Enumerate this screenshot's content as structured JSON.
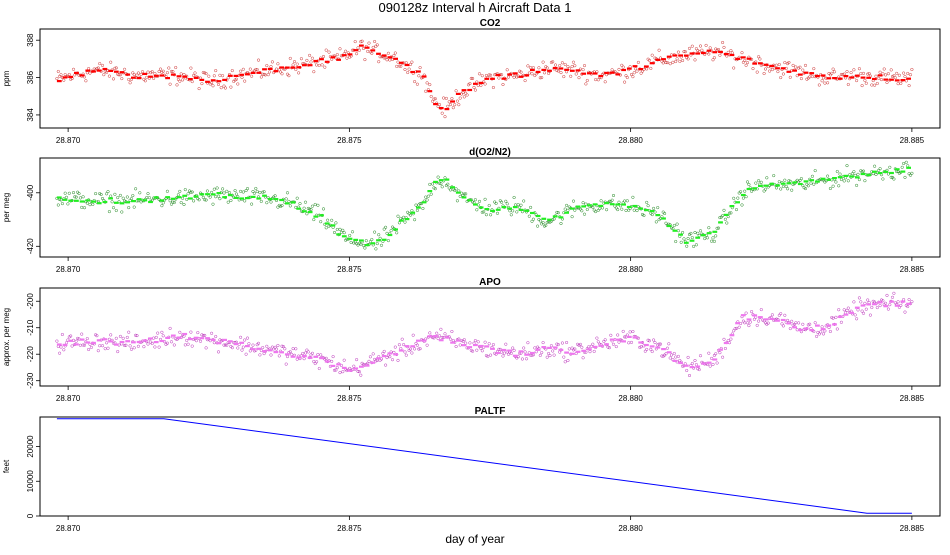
{
  "chart_data": {
    "title": "090128z   Interval h Aircraft Data 1",
    "xlabel": "day of year",
    "xlim": [
      28.8695,
      28.8855
    ],
    "x_ticks": [
      "28.870",
      "28.875",
      "28.880",
      "28.885"
    ],
    "panels": [
      {
        "id": "co2",
        "type": "scatter",
        "title": "CO2",
        "ylabel": "ppm",
        "ylim": [
          383.3,
          388.6
        ],
        "y_ticks": [
          "384",
          "386",
          "388"
        ],
        "point_color": "#cc3333",
        "line_color": "#ff0000",
        "anchors": [
          [
            28.8698,
            385.9
          ],
          [
            28.8705,
            386.4
          ],
          [
            28.8712,
            386.1
          ],
          [
            28.872,
            386.1
          ],
          [
            28.8725,
            385.8
          ],
          [
            28.873,
            386.1
          ],
          [
            28.874,
            386.6
          ],
          [
            28.8748,
            387.0
          ],
          [
            28.8752,
            387.6
          ],
          [
            28.8758,
            387.1
          ],
          [
            28.876,
            386.6
          ],
          [
            28.8763,
            386.2
          ],
          [
            28.8765,
            384.8
          ],
          [
            28.8767,
            384.3
          ],
          [
            28.877,
            385.2
          ],
          [
            28.8775,
            386.0
          ],
          [
            28.878,
            386.1
          ],
          [
            28.8785,
            386.5
          ],
          [
            28.879,
            386.4
          ],
          [
            28.8795,
            386.1
          ],
          [
            28.88,
            386.4
          ],
          [
            28.8805,
            386.9
          ],
          [
            28.881,
            387.2
          ],
          [
            28.8815,
            387.4
          ],
          [
            28.882,
            387.0
          ],
          [
            28.8825,
            386.6
          ],
          [
            28.883,
            386.3
          ],
          [
            28.8835,
            386.0
          ],
          [
            28.884,
            386.1
          ],
          [
            28.8845,
            386.0
          ],
          [
            28.885,
            385.9
          ]
        ]
      },
      {
        "id": "o2n2",
        "type": "scatter",
        "title": "d(O2/N2)",
        "ylabel": "per meg",
        "ylim": [
          -424.0,
          -387.0
        ],
        "y_ticks": [
          "-420",
          "-400"
        ],
        "point_color": "#228822",
        "line_color": "#22ee22",
        "anchors": [
          [
            28.8698,
            -402.0
          ],
          [
            28.8705,
            -403.0
          ],
          [
            28.871,
            -403.0
          ],
          [
            28.872,
            -402.0
          ],
          [
            28.8727,
            -401.0
          ],
          [
            28.8735,
            -402.0
          ],
          [
            28.874,
            -404.0
          ],
          [
            28.8745,
            -409.0
          ],
          [
            28.875,
            -418.0
          ],
          [
            28.8755,
            -419.0
          ],
          [
            28.876,
            -410.0
          ],
          [
            28.8763,
            -405.0
          ],
          [
            28.8765,
            -396.0
          ],
          [
            28.8767,
            -395.0
          ],
          [
            28.877,
            -402.0
          ],
          [
            28.8775,
            -406.0
          ],
          [
            28.878,
            -405.0
          ],
          [
            28.8785,
            -411.0
          ],
          [
            28.879,
            -406.0
          ],
          [
            28.8795,
            -404.0
          ],
          [
            28.88,
            -405.0
          ],
          [
            28.8805,
            -408.0
          ],
          [
            28.881,
            -418.0
          ],
          [
            28.8815,
            -415.0
          ],
          [
            28.882,
            -400.0
          ],
          [
            28.8823,
            -397.0
          ],
          [
            28.883,
            -397.0
          ],
          [
            28.8838,
            -394.0
          ],
          [
            28.8845,
            -392.0
          ],
          [
            28.885,
            -391.0
          ]
        ]
      },
      {
        "id": "apo",
        "type": "scatter",
        "title": "APO",
        "ylabel": "approx. per meg",
        "ylim": [
          -232.0,
          -195.0
        ],
        "y_ticks": [
          "-230",
          "-220",
          "-210",
          "-200"
        ],
        "point_color": "#bb33bb",
        "line_color": "#ee77ee",
        "anchors": [
          [
            28.8698,
            -216.0
          ],
          [
            28.8705,
            -215.0
          ],
          [
            28.8712,
            -216.0
          ],
          [
            28.872,
            -213.0
          ],
          [
            28.8727,
            -215.0
          ],
          [
            28.8735,
            -218.0
          ],
          [
            28.874,
            -220.0
          ],
          [
            28.8745,
            -222.0
          ],
          [
            28.875,
            -226.0
          ],
          [
            28.8755,
            -222.0
          ],
          [
            28.876,
            -218.0
          ],
          [
            28.8765,
            -213.0
          ],
          [
            28.877,
            -216.0
          ],
          [
            28.8775,
            -218.0
          ],
          [
            28.878,
            -220.0
          ],
          [
            28.8785,
            -218.0
          ],
          [
            28.879,
            -219.0
          ],
          [
            28.8795,
            -216.0
          ],
          [
            28.88,
            -214.0
          ],
          [
            28.8805,
            -217.0
          ],
          [
            28.881,
            -225.0
          ],
          [
            28.8815,
            -222.0
          ],
          [
            28.882,
            -206.0
          ],
          [
            28.8825,
            -206.0
          ],
          [
            28.883,
            -210.0
          ],
          [
            28.8835,
            -210.0
          ],
          [
            28.884,
            -203.0
          ],
          [
            28.8845,
            -201.0
          ],
          [
            28.885,
            -201.0
          ]
        ]
      },
      {
        "id": "paltf",
        "type": "line",
        "title": "PALTF",
        "ylabel": "feet",
        "ylim": [
          0,
          28500
        ],
        "y_ticks": [
          "0",
          "10000",
          "20000"
        ],
        "line_color": "#0000ff",
        "x": [
          28.8698,
          28.8717,
          28.8842,
          28.885
        ],
        "values": [
          28000,
          28000,
          800,
          800
        ]
      }
    ]
  }
}
